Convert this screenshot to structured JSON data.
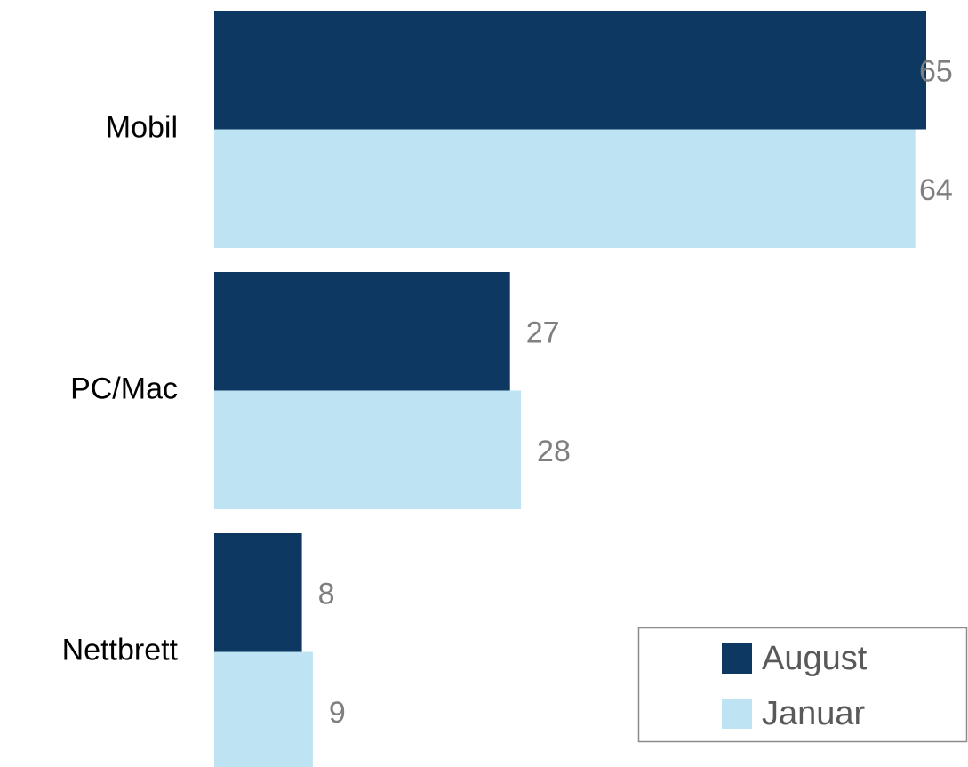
{
  "chart_data": {
    "type": "bar",
    "orientation": "horizontal",
    "categories": [
      "Mobil",
      "PC/Mac",
      "Nettbrett"
    ],
    "series": [
      {
        "name": "August",
        "color": "#0d3862",
        "values": [
          65,
          27,
          8
        ]
      },
      {
        "name": "Januar",
        "color": "#bee3f3",
        "values": [
          64,
          28,
          9
        ]
      }
    ],
    "xlim": [
      0,
      65
    ],
    "legend": "lower right"
  }
}
